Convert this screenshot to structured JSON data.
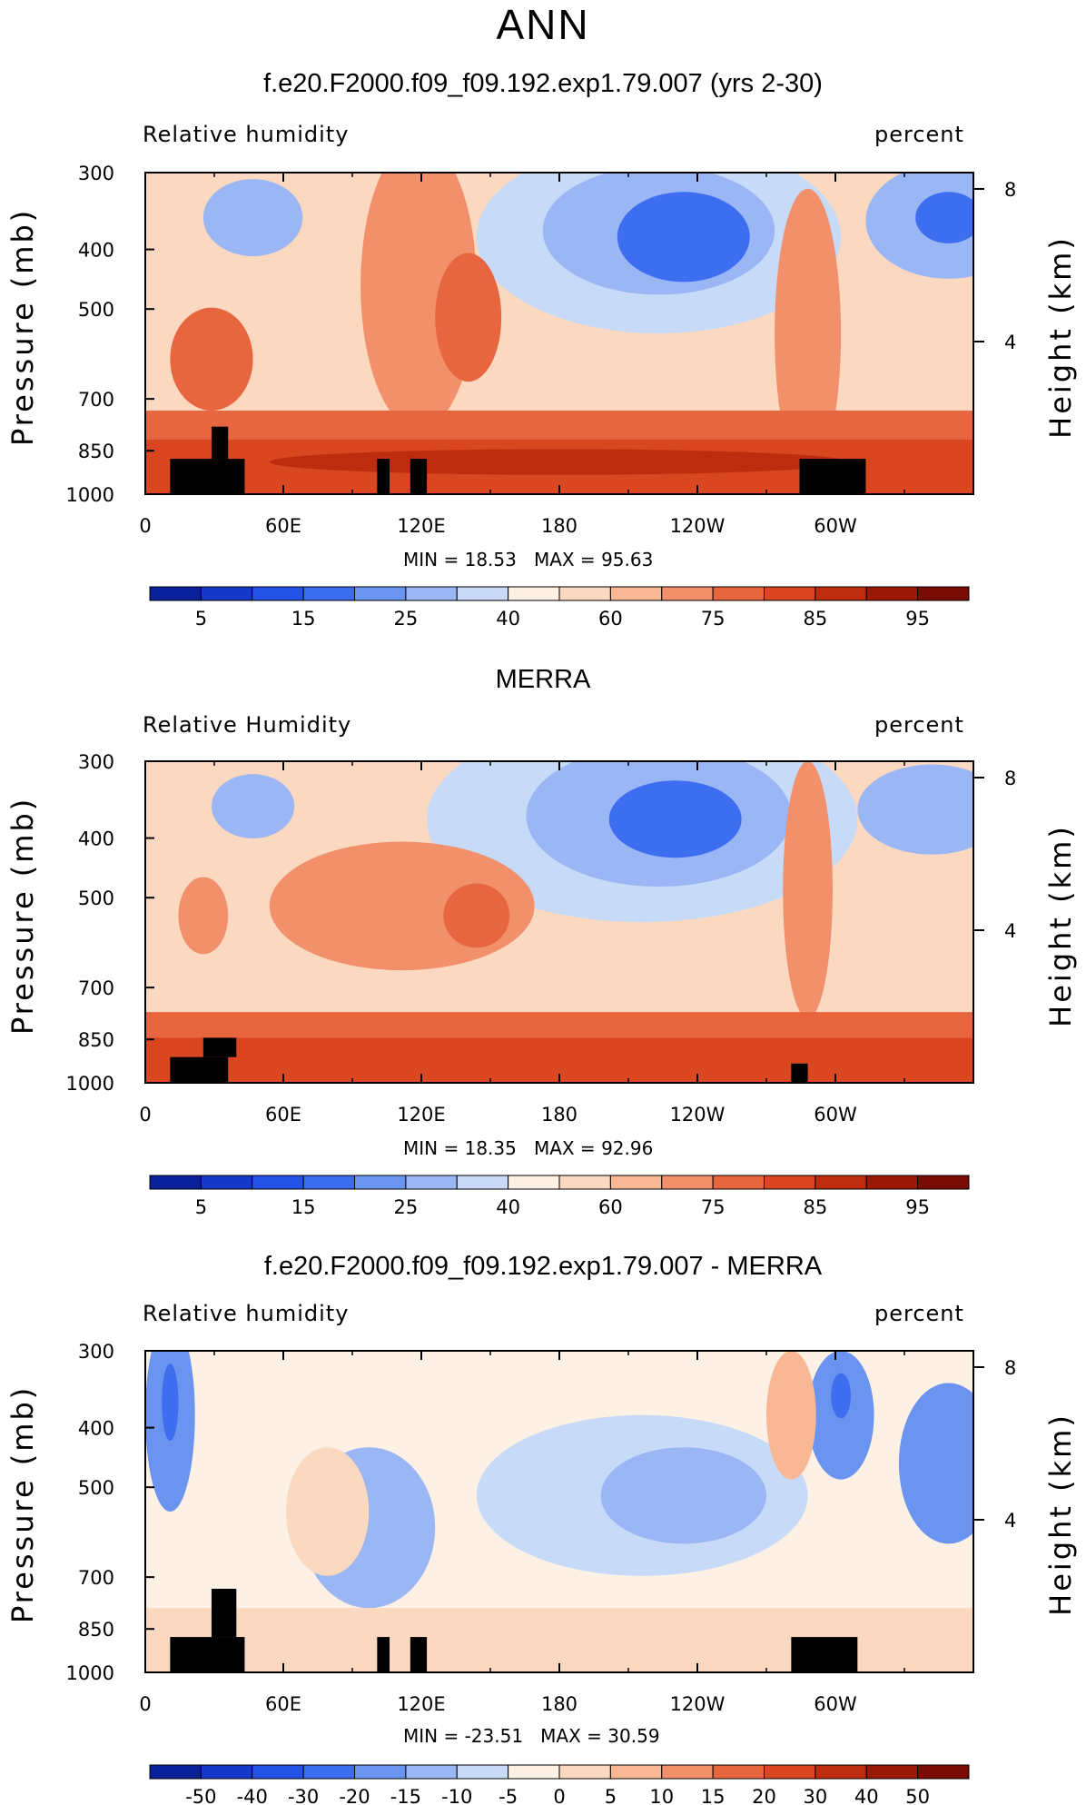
{
  "page_title": "ANN",
  "chart_data": [
    {
      "type": "heatmap",
      "title": "f.e20.F2000.f09_f09.192.exp1.79.007 (yrs 2-30)",
      "left_subtitle": "Relative humidity",
      "right_subtitle": "percent",
      "ylabel": "Pressure (mb)",
      "y2label": "Height (km)",
      "xticks": [
        "0",
        "60E",
        "120E",
        "180",
        "120W",
        "60W"
      ],
      "yticks": [
        "300",
        "400",
        "500",
        "700",
        "850",
        "1000"
      ],
      "y2ticks": [
        "8",
        "4"
      ],
      "min_label": "MIN = ",
      "min_value": "18.53",
      "max_label": "MAX = ",
      "max_value": "95.63",
      "colorbar_labels": [
        "5",
        "15",
        "25",
        "40",
        "60",
        "75",
        "85",
        "95"
      ],
      "colorbar_colors": [
        "#0a1f9a",
        "#1438c8",
        "#2352e6",
        "#3d6ef0",
        "#6b93f0",
        "#9ab6f4",
        "#c7dbf8",
        "#fdf0e4",
        "#fbd9c1",
        "#f8b896",
        "#f1906a",
        "#e8663f",
        "#d9461f",
        "#bf2b0e",
        "#9a1a06",
        "#7a0a04"
      ],
      "vmin": 0,
      "vmax": 100,
      "grid": false
    },
    {
      "type": "heatmap",
      "title": "MERRA",
      "left_subtitle": "Relative Humidity",
      "right_subtitle": "percent",
      "ylabel": "Pressure (mb)",
      "y2label": "Height (km)",
      "xticks": [
        "0",
        "60E",
        "120E",
        "180",
        "120W",
        "60W"
      ],
      "yticks": [
        "300",
        "400",
        "500",
        "700",
        "850",
        "1000"
      ],
      "y2ticks": [
        "8",
        "4"
      ],
      "min_label": "MIN = ",
      "min_value": "18.35",
      "max_label": "MAX = ",
      "max_value": "92.96",
      "colorbar_labels": [
        "5",
        "15",
        "25",
        "40",
        "60",
        "75",
        "85",
        "95"
      ],
      "colorbar_colors": [
        "#0a1f9a",
        "#1438c8",
        "#2352e6",
        "#3d6ef0",
        "#6b93f0",
        "#9ab6f4",
        "#c7dbf8",
        "#fdf0e4",
        "#fbd9c1",
        "#f8b896",
        "#f1906a",
        "#e8663f",
        "#d9461f",
        "#bf2b0e",
        "#9a1a06",
        "#7a0a04"
      ],
      "vmin": 0,
      "vmax": 100,
      "grid": false
    },
    {
      "type": "heatmap",
      "title": "f.e20.F2000.f09_f09.192.exp1.79.007 - MERRA",
      "left_subtitle": "Relative humidity",
      "right_subtitle": "percent",
      "ylabel": "Pressure (mb)",
      "y2label": "Height (km)",
      "xticks": [
        "0",
        "60E",
        "120E",
        "180",
        "120W",
        "60W"
      ],
      "yticks": [
        "300",
        "400",
        "500",
        "700",
        "850",
        "1000"
      ],
      "y2ticks": [
        "8",
        "4"
      ],
      "min_label": "MIN = ",
      "min_value": "-23.51",
      "max_label": "MAX = ",
      "max_value": "30.59",
      "colorbar_labels": [
        "-50",
        "-40",
        "-30",
        "-20",
        "-15",
        "-10",
        "-5",
        "0",
        "5",
        "10",
        "15",
        "20",
        "30",
        "40",
        "50"
      ],
      "colorbar_colors": [
        "#0a1f9a",
        "#1438c8",
        "#2352e6",
        "#3d6ef0",
        "#6b93f0",
        "#9ab6f4",
        "#c7dbf8",
        "#fdf0e4",
        "#fbd9c1",
        "#f8b896",
        "#f1906a",
        "#e8663f",
        "#d9461f",
        "#bf2b0e",
        "#9a1a06",
        "#7a0a04"
      ],
      "vmin": -50,
      "vmax": 50,
      "grid": false
    }
  ]
}
